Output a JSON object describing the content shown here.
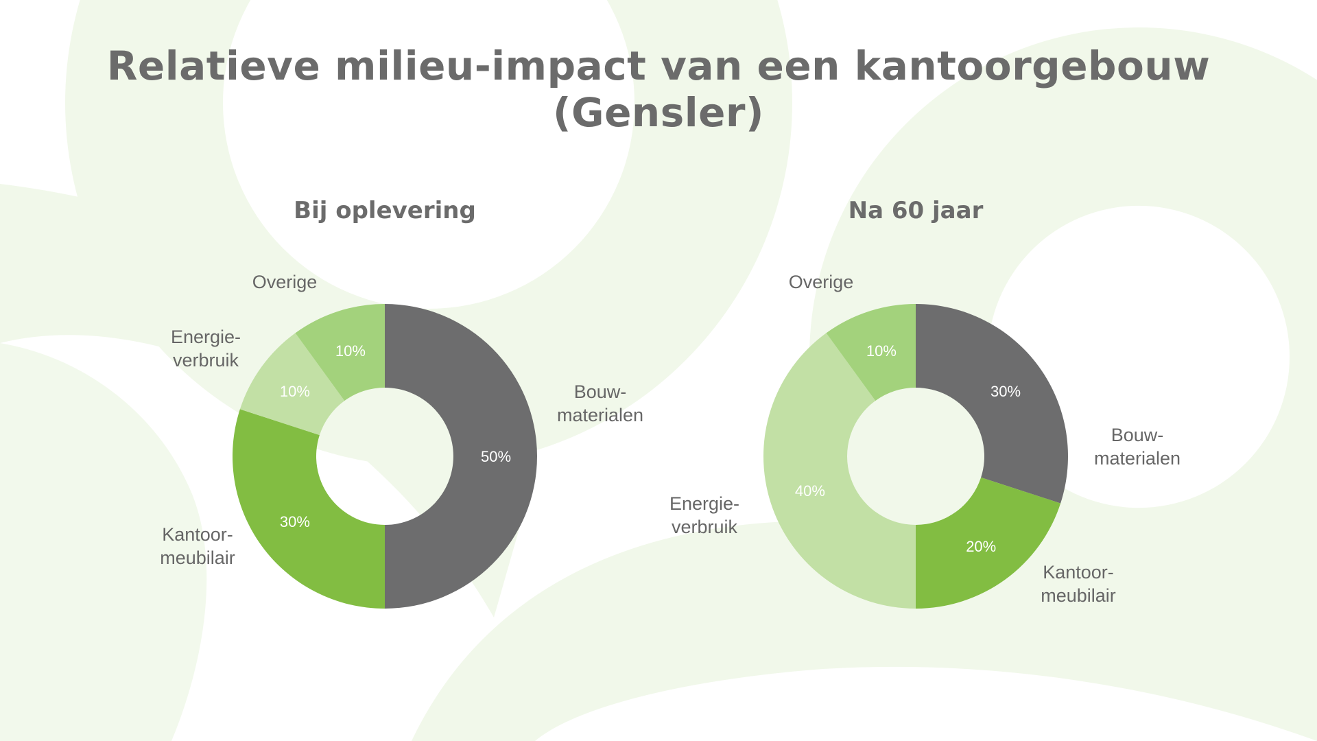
{
  "page": {
    "title": "Relatieve milieu-impact van een kantoorgebouw (Gensler)"
  },
  "colors": {
    "background": "#ffffff",
    "decor": "#f1f8ea",
    "title": "#6b6b6b",
    "label": "#666666",
    "dark_gray": "#6d6d6e",
    "green": "#82bd42",
    "light_green": "#c2e0a5",
    "mid_green": "#a3d27c"
  },
  "chart_data": [
    {
      "type": "pie",
      "title": "Bij oplevering",
      "slices": [
        {
          "label": "Bouw-\nmaterialen",
          "value": 50,
          "text": "50%",
          "color": "#6d6d6e"
        },
        {
          "label": "Kantoor-\nmeubilair",
          "value": 30,
          "text": "30%",
          "color": "#82bd42"
        },
        {
          "label": "Energie-\nverbruik",
          "value": 10,
          "text": "10%",
          "color": "#c2e0a5"
        },
        {
          "label": "Overige",
          "value": 10,
          "text": "10%",
          "color": "#a3d27c"
        }
      ]
    },
    {
      "type": "pie",
      "title": "Na 60 jaar",
      "slices": [
        {
          "label": "Bouw-\nmaterialen",
          "value": 30,
          "text": "30%",
          "color": "#6d6d6e"
        },
        {
          "label": "Kantoor-\nmeubilair",
          "value": 20,
          "text": "20%",
          "color": "#82bd42"
        },
        {
          "label": "Energie-\nverbruik",
          "value": 40,
          "text": "40%",
          "color": "#c2e0a5"
        },
        {
          "label": "Overige",
          "value": 10,
          "text": "10%",
          "color": "#a3d27c"
        }
      ]
    }
  ]
}
